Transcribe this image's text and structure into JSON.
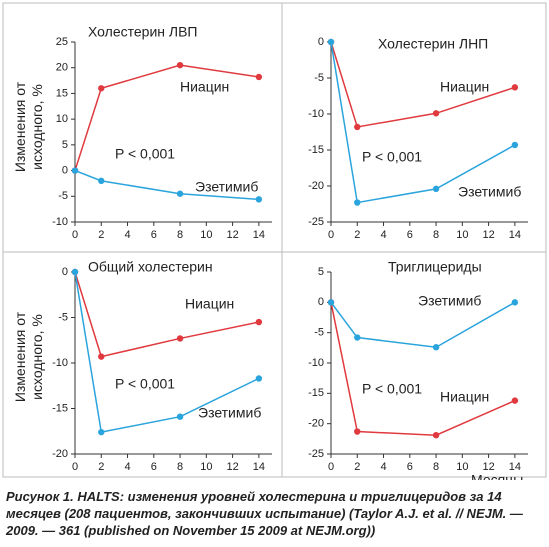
{
  "chart_data": [
    {
      "type": "line",
      "title": "Холестерин ЛВП",
      "ylabel": "Изменения от исходного, %",
      "annotation": "P < 0,001",
      "x": [
        0,
        2,
        8,
        14
      ],
      "xlim": [
        0,
        15
      ],
      "xticks": [
        0,
        2,
        4,
        6,
        8,
        10,
        12,
        14
      ],
      "ylim": [
        -10,
        25
      ],
      "yticks": [
        -10,
        -5,
        0,
        5,
        10,
        15,
        20,
        25
      ],
      "series": [
        {
          "name": "Ниацин",
          "color": "#e0393e",
          "values": [
            0,
            16,
            20.5,
            18.2
          ]
        },
        {
          "name": "Эзетимиб",
          "color": "#2aa4dc",
          "values": [
            0,
            -2,
            -4.5,
            -5.6
          ]
        }
      ]
    },
    {
      "type": "line",
      "title": "Холестерин ЛНП",
      "annotation": "P < 0,001",
      "x": [
        0,
        2,
        8,
        14
      ],
      "xlim": [
        0,
        15
      ],
      "xticks": [
        0,
        2,
        4,
        6,
        8,
        10,
        12,
        14
      ],
      "ylim": [
        -25,
        0
      ],
      "yticks": [
        -25,
        -20,
        -15,
        -10,
        -5,
        0
      ],
      "series": [
        {
          "name": "Ниацин",
          "color": "#e0393e",
          "values": [
            0,
            -11.8,
            -9.9,
            -6.3
          ]
        },
        {
          "name": "Эзетимиб",
          "color": "#2aa4dc",
          "values": [
            0,
            -22.3,
            -20.4,
            -14.3
          ]
        }
      ]
    },
    {
      "type": "line",
      "title": "Общий холестерин",
      "ylabel": "Изменения от исходного, %",
      "annotation": "P < 0,001",
      "x": [
        0,
        2,
        8,
        14
      ],
      "xlim": [
        0,
        15
      ],
      "xticks": [
        0,
        2,
        4,
        6,
        8,
        10,
        12,
        14
      ],
      "ylim": [
        -20,
        0
      ],
      "yticks": [
        -20,
        -15,
        -10,
        -5,
        0
      ],
      "series": [
        {
          "name": "Ниацин",
          "color": "#e0393e",
          "values": [
            0,
            -9.3,
            -7.3,
            -5.5
          ]
        },
        {
          "name": "Эзетимиб",
          "color": "#2aa4dc",
          "values": [
            0,
            -17.6,
            -15.9,
            -11.7
          ]
        }
      ]
    },
    {
      "type": "line",
      "title": "Триглицериды",
      "xlabel": "Месяцы",
      "annotation": "P < 0,001",
      "x": [
        0,
        2,
        8,
        14
      ],
      "xlim": [
        0,
        15
      ],
      "xticks": [
        0,
        2,
        4,
        6,
        8,
        10,
        12,
        14
      ],
      "ylim": [
        -25,
        5
      ],
      "yticks": [
        -25,
        -20,
        -15,
        -10,
        -5,
        0,
        5
      ],
      "series": [
        {
          "name": "Ниацин",
          "color": "#e0393e",
          "values": [
            0,
            -21.3,
            -21.9,
            -16.2
          ]
        },
        {
          "name": "Эзетимиб",
          "color": "#2aa4dc",
          "values": [
            0,
            -5.8,
            -7.4,
            0
          ]
        }
      ]
    }
  ],
  "caption": "Рисунок 1. HALTS: изменения уровней холестерина и триглицеридов за 14 месяцев (208 пациентов, закончивших испытание) (Taylor A.J. et al. // NEJM. — 2009. — 361 (published on November 15 2009 at NEJM.org))"
}
